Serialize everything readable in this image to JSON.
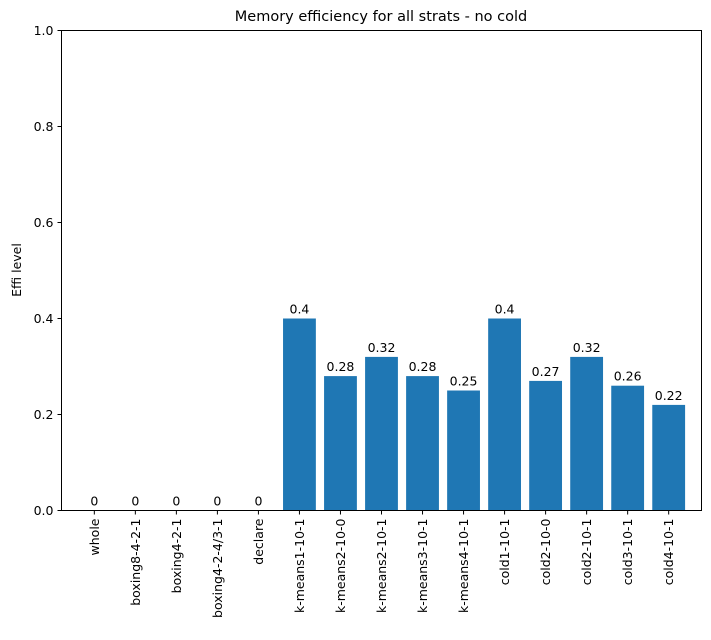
{
  "chart_data": {
    "type": "bar",
    "title": "Memory efficiency for all strats - no cold",
    "xlabel": "",
    "ylabel": "Effi level",
    "ylim": [
      0,
      1.0
    ],
    "yticks": [
      "0.0",
      "0.2",
      "0.4",
      "0.6",
      "0.8",
      "1.0"
    ],
    "grid": false,
    "color": "#1f77b4",
    "categories": [
      "whole",
      "boxing8-4-2-1",
      "boxing4-2-1",
      "boxing4-2-4/3-1",
      "declare",
      "k-means1-10-1",
      "k-means2-10-0",
      "k-means2-10-1",
      "k-means3-10-1",
      "k-means4-10-1",
      "cold1-10-1",
      "cold2-10-0",
      "cold2-10-1",
      "cold3-10-1",
      "cold4-10-1"
    ],
    "values": [
      0,
      0,
      0,
      0,
      0,
      0.4,
      0.28,
      0.32,
      0.28,
      0.25,
      0.4,
      0.27,
      0.32,
      0.26,
      0.22
    ],
    "data_labels": [
      "0",
      "0",
      "0",
      "0",
      "0",
      "0.4",
      "0.28",
      "0.32",
      "0.28",
      "0.25",
      "0.4",
      "0.27",
      "0.32",
      "0.26",
      "0.22"
    ]
  }
}
